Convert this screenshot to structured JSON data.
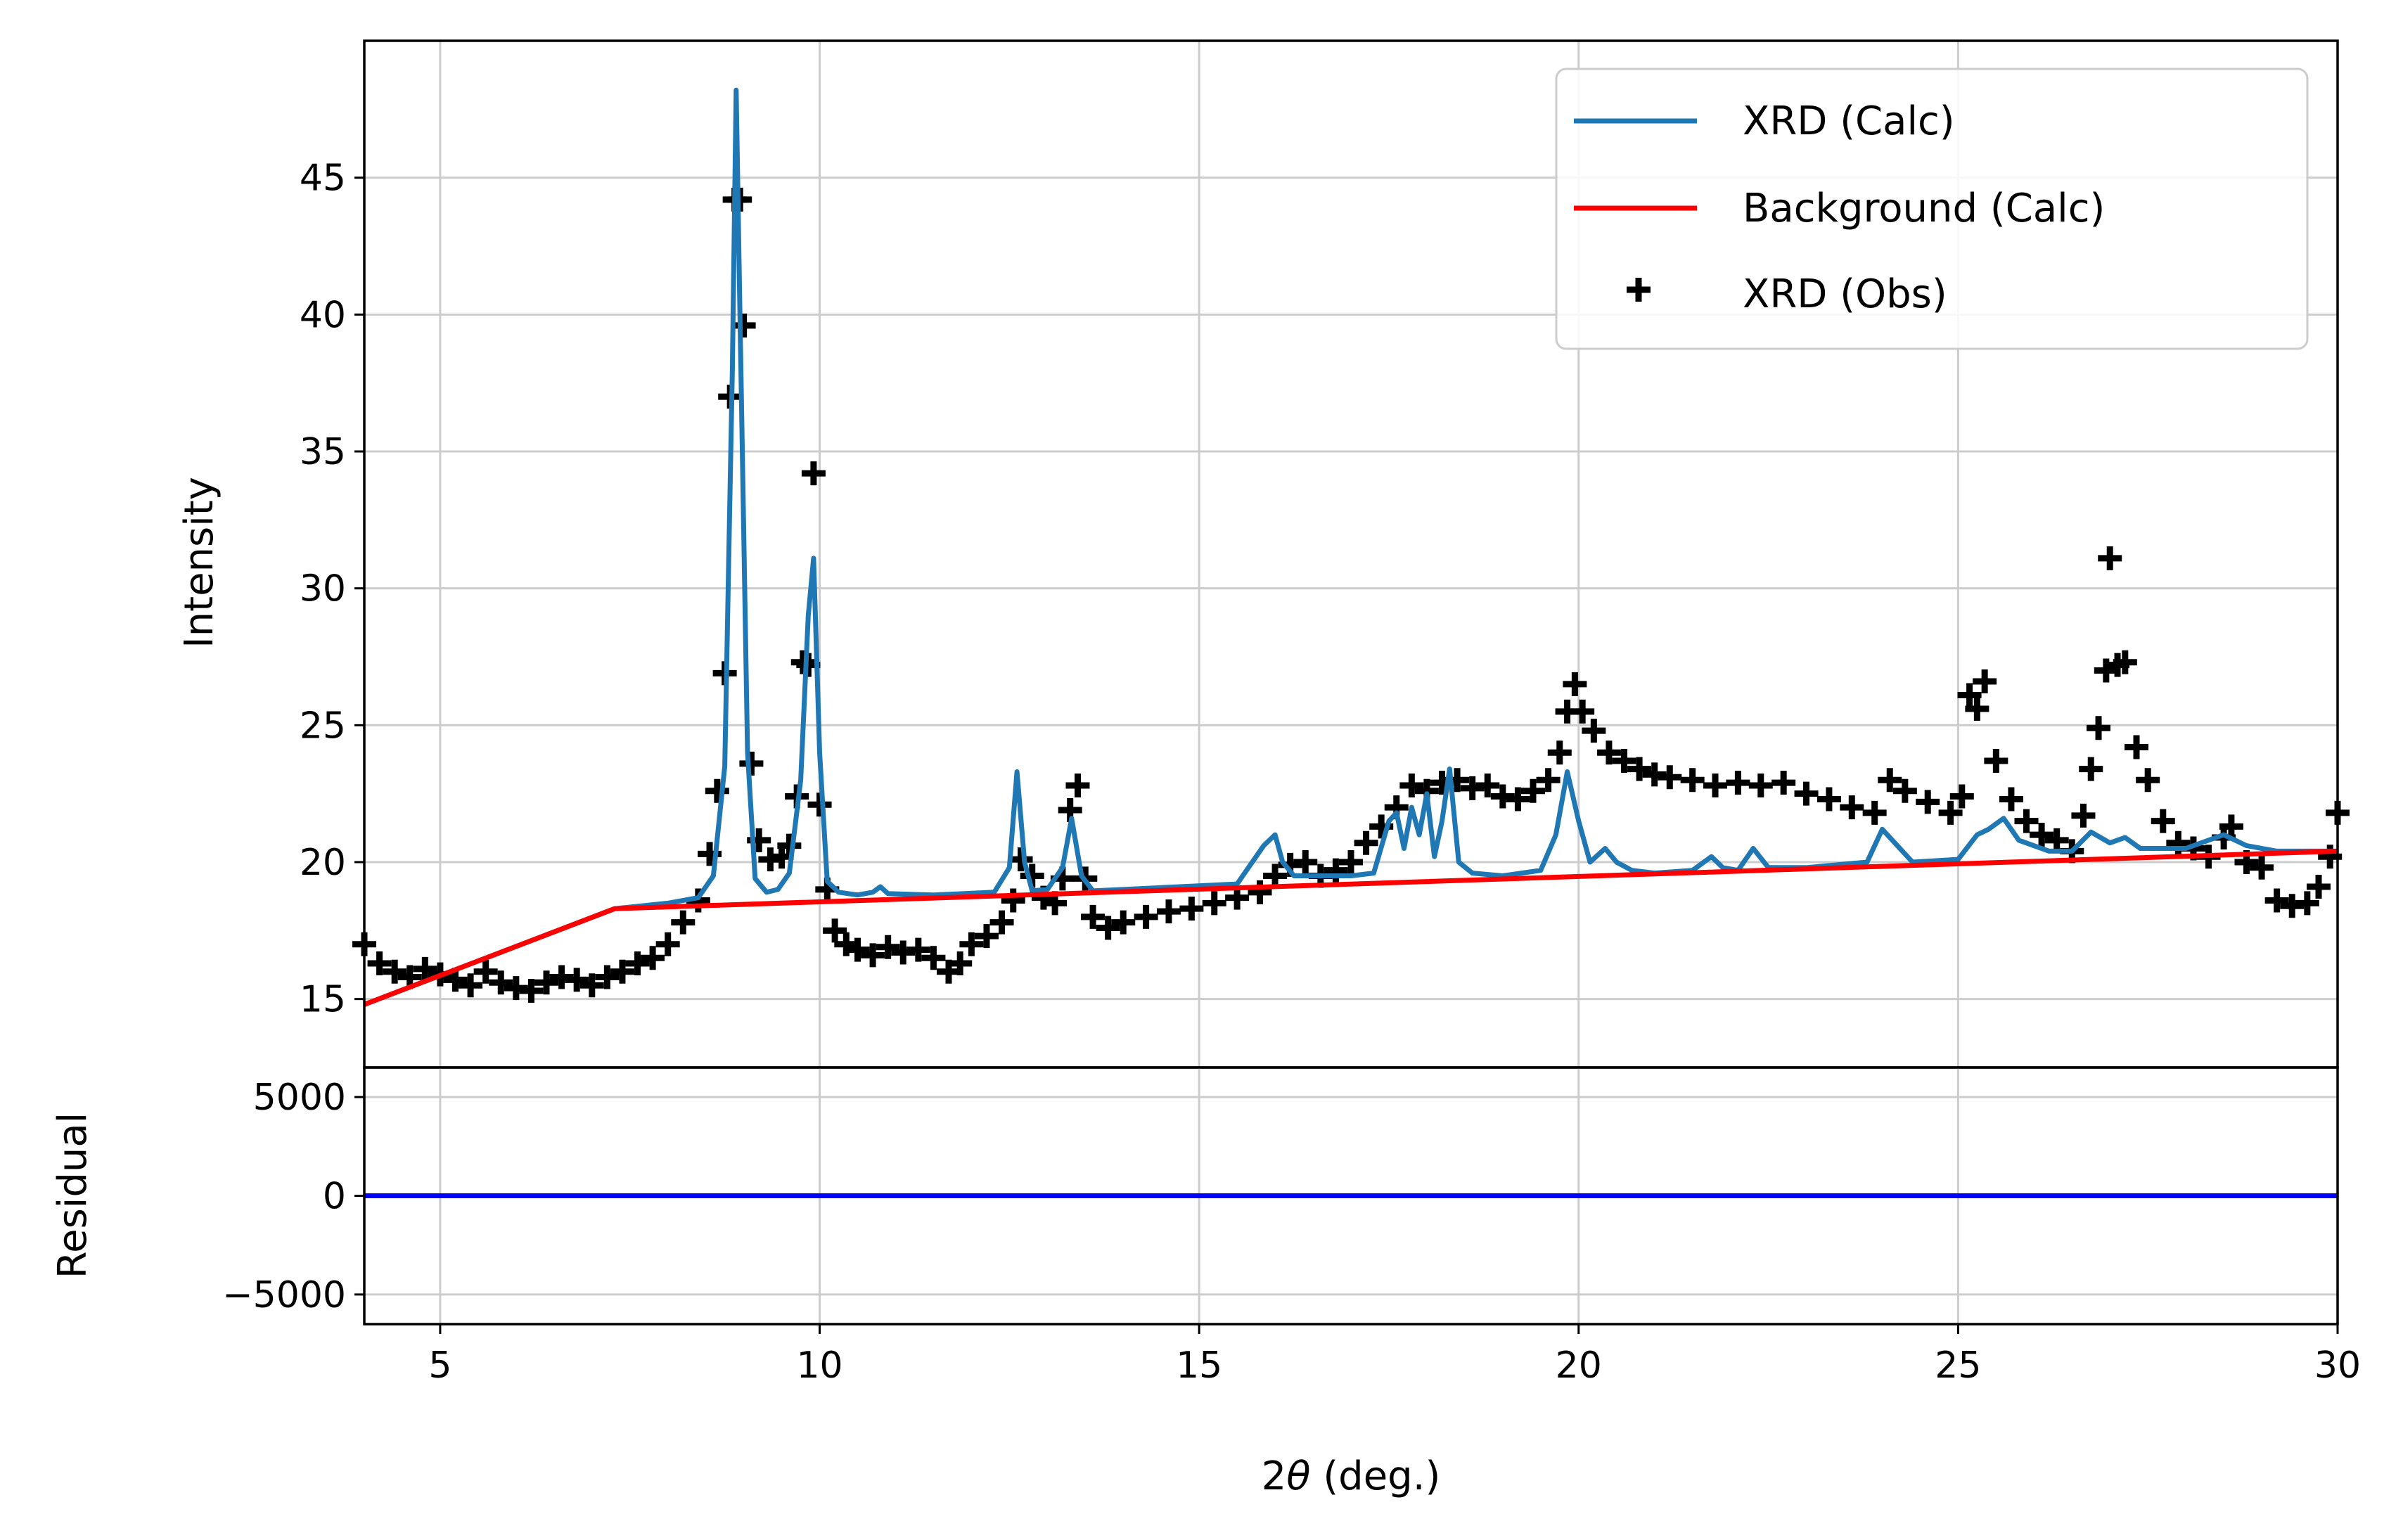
{
  "chart_data": {
    "type": "line",
    "xlabel_prefix": "2",
    "xlabel_symbol": "θ",
    "xlabel_suffix": " (deg.)",
    "xlim": [
      4,
      30
    ],
    "x_ticks": [
      "5",
      "10",
      "15",
      "20",
      "25",
      "30"
    ],
    "grid": true,
    "legend_position": "top-right",
    "main": {
      "ylabel": "Intensity",
      "ylim": [
        12.5,
        50
      ],
      "y_ticks": [
        "15",
        "20",
        "25",
        "30",
        "35",
        "40",
        "45"
      ],
      "series": [
        {
          "name": "XRD (Calc)",
          "kind": "line",
          "color": "#1f77b4",
          "x": [
            4.0,
            7.3,
            8.0,
            8.4,
            8.6,
            8.75,
            8.85,
            8.9,
            8.95,
            9.05,
            9.15,
            9.3,
            9.45,
            9.6,
            9.75,
            9.85,
            9.92,
            10.0,
            10.1,
            10.25,
            10.5,
            10.7,
            10.8,
            10.9,
            11.5,
            12.3,
            12.5,
            12.6,
            12.7,
            12.8,
            13.0,
            13.2,
            13.32,
            13.45,
            13.6,
            14.0,
            15.5,
            15.85,
            16.0,
            16.1,
            16.25,
            16.6,
            17.0,
            17.3,
            17.5,
            17.6,
            17.7,
            17.8,
            17.9,
            18.0,
            18.1,
            18.2,
            18.3,
            18.42,
            18.6,
            19.0,
            19.5,
            19.7,
            19.85,
            20.0,
            20.15,
            20.35,
            20.5,
            20.7,
            21.0,
            21.5,
            21.75,
            21.9,
            22.1,
            22.3,
            22.5,
            23.0,
            23.8,
            24.0,
            24.2,
            24.4,
            25.0,
            25.25,
            25.4,
            25.6,
            25.8,
            26.2,
            26.5,
            26.75,
            27.0,
            27.2,
            27.4,
            28.0,
            28.5,
            28.8,
            29.2,
            30.0
          ],
          "y": [
            14.8,
            18.3,
            18.5,
            18.7,
            19.5,
            23.5,
            38.0,
            48.2,
            40.0,
            24.0,
            19.4,
            18.9,
            19.0,
            19.6,
            23.0,
            29.0,
            31.1,
            24.0,
            19.3,
            18.9,
            18.8,
            18.9,
            19.1,
            18.85,
            18.8,
            18.9,
            19.8,
            23.3,
            20.0,
            18.95,
            19.0,
            19.8,
            21.6,
            19.5,
            18.95,
            19.0,
            19.2,
            20.6,
            21.0,
            20.0,
            19.5,
            19.5,
            19.5,
            19.6,
            21.5,
            21.8,
            20.5,
            22.0,
            21.0,
            22.5,
            20.2,
            21.5,
            23.4,
            20.0,
            19.6,
            19.5,
            19.7,
            21.0,
            23.3,
            21.5,
            20.0,
            20.5,
            20.0,
            19.7,
            19.6,
            19.7,
            20.2,
            19.8,
            19.7,
            20.5,
            19.8,
            19.8,
            20.0,
            21.2,
            20.6,
            20.0,
            20.1,
            21.0,
            21.2,
            21.6,
            20.8,
            20.4,
            20.4,
            21.1,
            20.7,
            20.9,
            20.5,
            20.5,
            21.0,
            20.6,
            20.4,
            20.4
          ]
        },
        {
          "name": "Background (Calc)",
          "kind": "line",
          "color": "#ff0000",
          "x": [
            4.0,
            7.3,
            30.0
          ],
          "y": [
            14.8,
            18.3,
            20.4
          ]
        },
        {
          "name": "XRD (Obs)",
          "kind": "scatter",
          "marker": "plus",
          "color": "#000000",
          "x": [
            4.0,
            4.2,
            4.4,
            4.6,
            4.8,
            5.0,
            5.2,
            5.4,
            5.6,
            5.8,
            6.0,
            6.2,
            6.4,
            6.6,
            6.8,
            7.0,
            7.2,
            7.4,
            7.6,
            7.8,
            8.0,
            8.2,
            8.4,
            8.55,
            8.65,
            8.75,
            8.82,
            8.88,
            8.95,
            9.0,
            9.1,
            9.2,
            9.35,
            9.5,
            9.6,
            9.7,
            9.78,
            9.85,
            9.92,
            10.0,
            10.1,
            10.2,
            10.35,
            10.5,
            10.7,
            10.9,
            11.1,
            11.3,
            11.5,
            11.7,
            11.85,
            12.0,
            12.2,
            12.4,
            12.55,
            12.65,
            12.8,
            12.95,
            13.1,
            13.2,
            13.3,
            13.4,
            13.5,
            13.6,
            13.8,
            14.0,
            14.3,
            14.6,
            14.9,
            15.2,
            15.5,
            15.8,
            16.0,
            16.2,
            16.4,
            16.6,
            16.8,
            17.0,
            17.2,
            17.4,
            17.6,
            17.8,
            18.0,
            18.2,
            18.4,
            18.6,
            18.8,
            19.0,
            19.2,
            19.4,
            19.6,
            19.75,
            19.85,
            19.95,
            20.05,
            20.2,
            20.4,
            20.6,
            20.8,
            21.0,
            21.2,
            21.5,
            21.8,
            22.1,
            22.4,
            22.7,
            23.0,
            23.3,
            23.6,
            23.9,
            24.1,
            24.3,
            24.6,
            24.9,
            25.05,
            25.15,
            25.25,
            25.35,
            25.5,
            25.7,
            25.9,
            26.1,
            26.3,
            26.5,
            26.65,
            26.75,
            26.85,
            26.95,
            27.0,
            27.1,
            27.2,
            27.35,
            27.5,
            27.7,
            27.9,
            28.1,
            28.3,
            28.5,
            28.6,
            28.8,
            29.0,
            29.2,
            29.4,
            29.6,
            29.75,
            29.9,
            30.0
          ],
          "y": [
            17.0,
            16.3,
            16.0,
            15.8,
            16.1,
            15.9,
            15.7,
            15.5,
            16.0,
            15.6,
            15.4,
            15.3,
            15.6,
            15.8,
            15.7,
            15.5,
            15.8,
            16.0,
            16.3,
            16.5,
            17.0,
            17.8,
            18.6,
            20.3,
            22.6,
            26.9,
            37.0,
            44.2,
            44.2,
            39.6,
            23.6,
            20.8,
            20.1,
            20.2,
            20.6,
            22.4,
            27.3,
            27.2,
            34.2,
            22.1,
            19.0,
            17.5,
            17.0,
            16.8,
            16.6,
            16.9,
            16.7,
            16.8,
            16.5,
            16.0,
            16.3,
            17.0,
            17.3,
            17.8,
            18.6,
            20.1,
            19.5,
            18.7,
            18.5,
            19.4,
            21.9,
            22.8,
            19.4,
            18.0,
            17.6,
            17.8,
            18.0,
            18.2,
            18.3,
            18.5,
            18.7,
            18.9,
            19.5,
            19.9,
            20.0,
            19.5,
            19.7,
            20.0,
            20.7,
            21.3,
            22.0,
            22.8,
            22.6,
            22.9,
            23.0,
            22.7,
            22.8,
            22.4,
            22.3,
            22.6,
            23.0,
            24.0,
            25.5,
            26.5,
            25.5,
            24.8,
            24.0,
            23.7,
            23.4,
            23.2,
            23.1,
            23.0,
            22.8,
            22.9,
            22.8,
            22.9,
            22.5,
            22.3,
            22.0,
            21.8,
            23.0,
            22.6,
            22.2,
            21.8,
            22.4,
            26.1,
            25.6,
            26.6,
            23.7,
            22.3,
            21.5,
            21.0,
            20.8,
            20.4,
            21.7,
            23.4,
            24.9,
            27.0,
            31.1,
            27.2,
            27.3,
            24.2,
            23.0,
            21.5,
            20.7,
            20.5,
            20.2,
            20.9,
            21.3,
            20.0,
            19.8,
            18.6,
            18.4,
            18.5,
            19.1,
            20.2,
            21.8
          ]
        }
      ]
    },
    "residual": {
      "ylabel": "Residual",
      "ylim": [
        -6500,
        6500
      ],
      "y_ticks": [
        {
          "value": 5000,
          "label": "5000"
        },
        {
          "value": 0,
          "label": "0"
        },
        {
          "value": -5000,
          "label": "−5000"
        }
      ],
      "series": [
        {
          "kind": "line",
          "color": "#0000ff",
          "x": [
            4.0,
            30.0
          ],
          "y": [
            0,
            0
          ]
        }
      ]
    }
  }
}
